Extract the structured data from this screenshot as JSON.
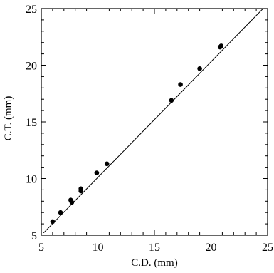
{
  "chart_data": {
    "type": "scatter",
    "xlabel": "C.D. (mm)",
    "ylabel": "C.T. (mm)",
    "xlim": [
      5,
      25
    ],
    "ylim": [
      5,
      25
    ],
    "xticks": [
      "5",
      "10",
      "15",
      "20",
      "25"
    ],
    "yticks": [
      "5",
      "10",
      "15",
      "20",
      "25"
    ],
    "grid": false,
    "series": [
      {
        "points": [
          {
            "x": 6.0,
            "y": 6.2
          },
          {
            "x": 6.7,
            "y": 7.0
          },
          {
            "x": 7.6,
            "y": 8.1
          },
          {
            "x": 7.7,
            "y": 7.9
          },
          {
            "x": 8.5,
            "y": 8.9
          },
          {
            "x": 8.5,
            "y": 9.1
          },
          {
            "x": 9.9,
            "y": 10.5
          },
          {
            "x": 10.8,
            "y": 11.3
          },
          {
            "x": 16.5,
            "y": 16.9
          },
          {
            "x": 17.3,
            "y": 18.3
          },
          {
            "x": 19.0,
            "y": 19.7
          },
          {
            "x": 20.8,
            "y": 21.6
          },
          {
            "x": 20.9,
            "y": 21.7
          }
        ]
      }
    ],
    "fit_line": {
      "x": [
        5.2,
        24.6
      ],
      "y": [
        5.2,
        25.0
      ]
    },
    "colors": {
      "points": "#000000",
      "line": "#000000",
      "axes": "#000000"
    }
  }
}
